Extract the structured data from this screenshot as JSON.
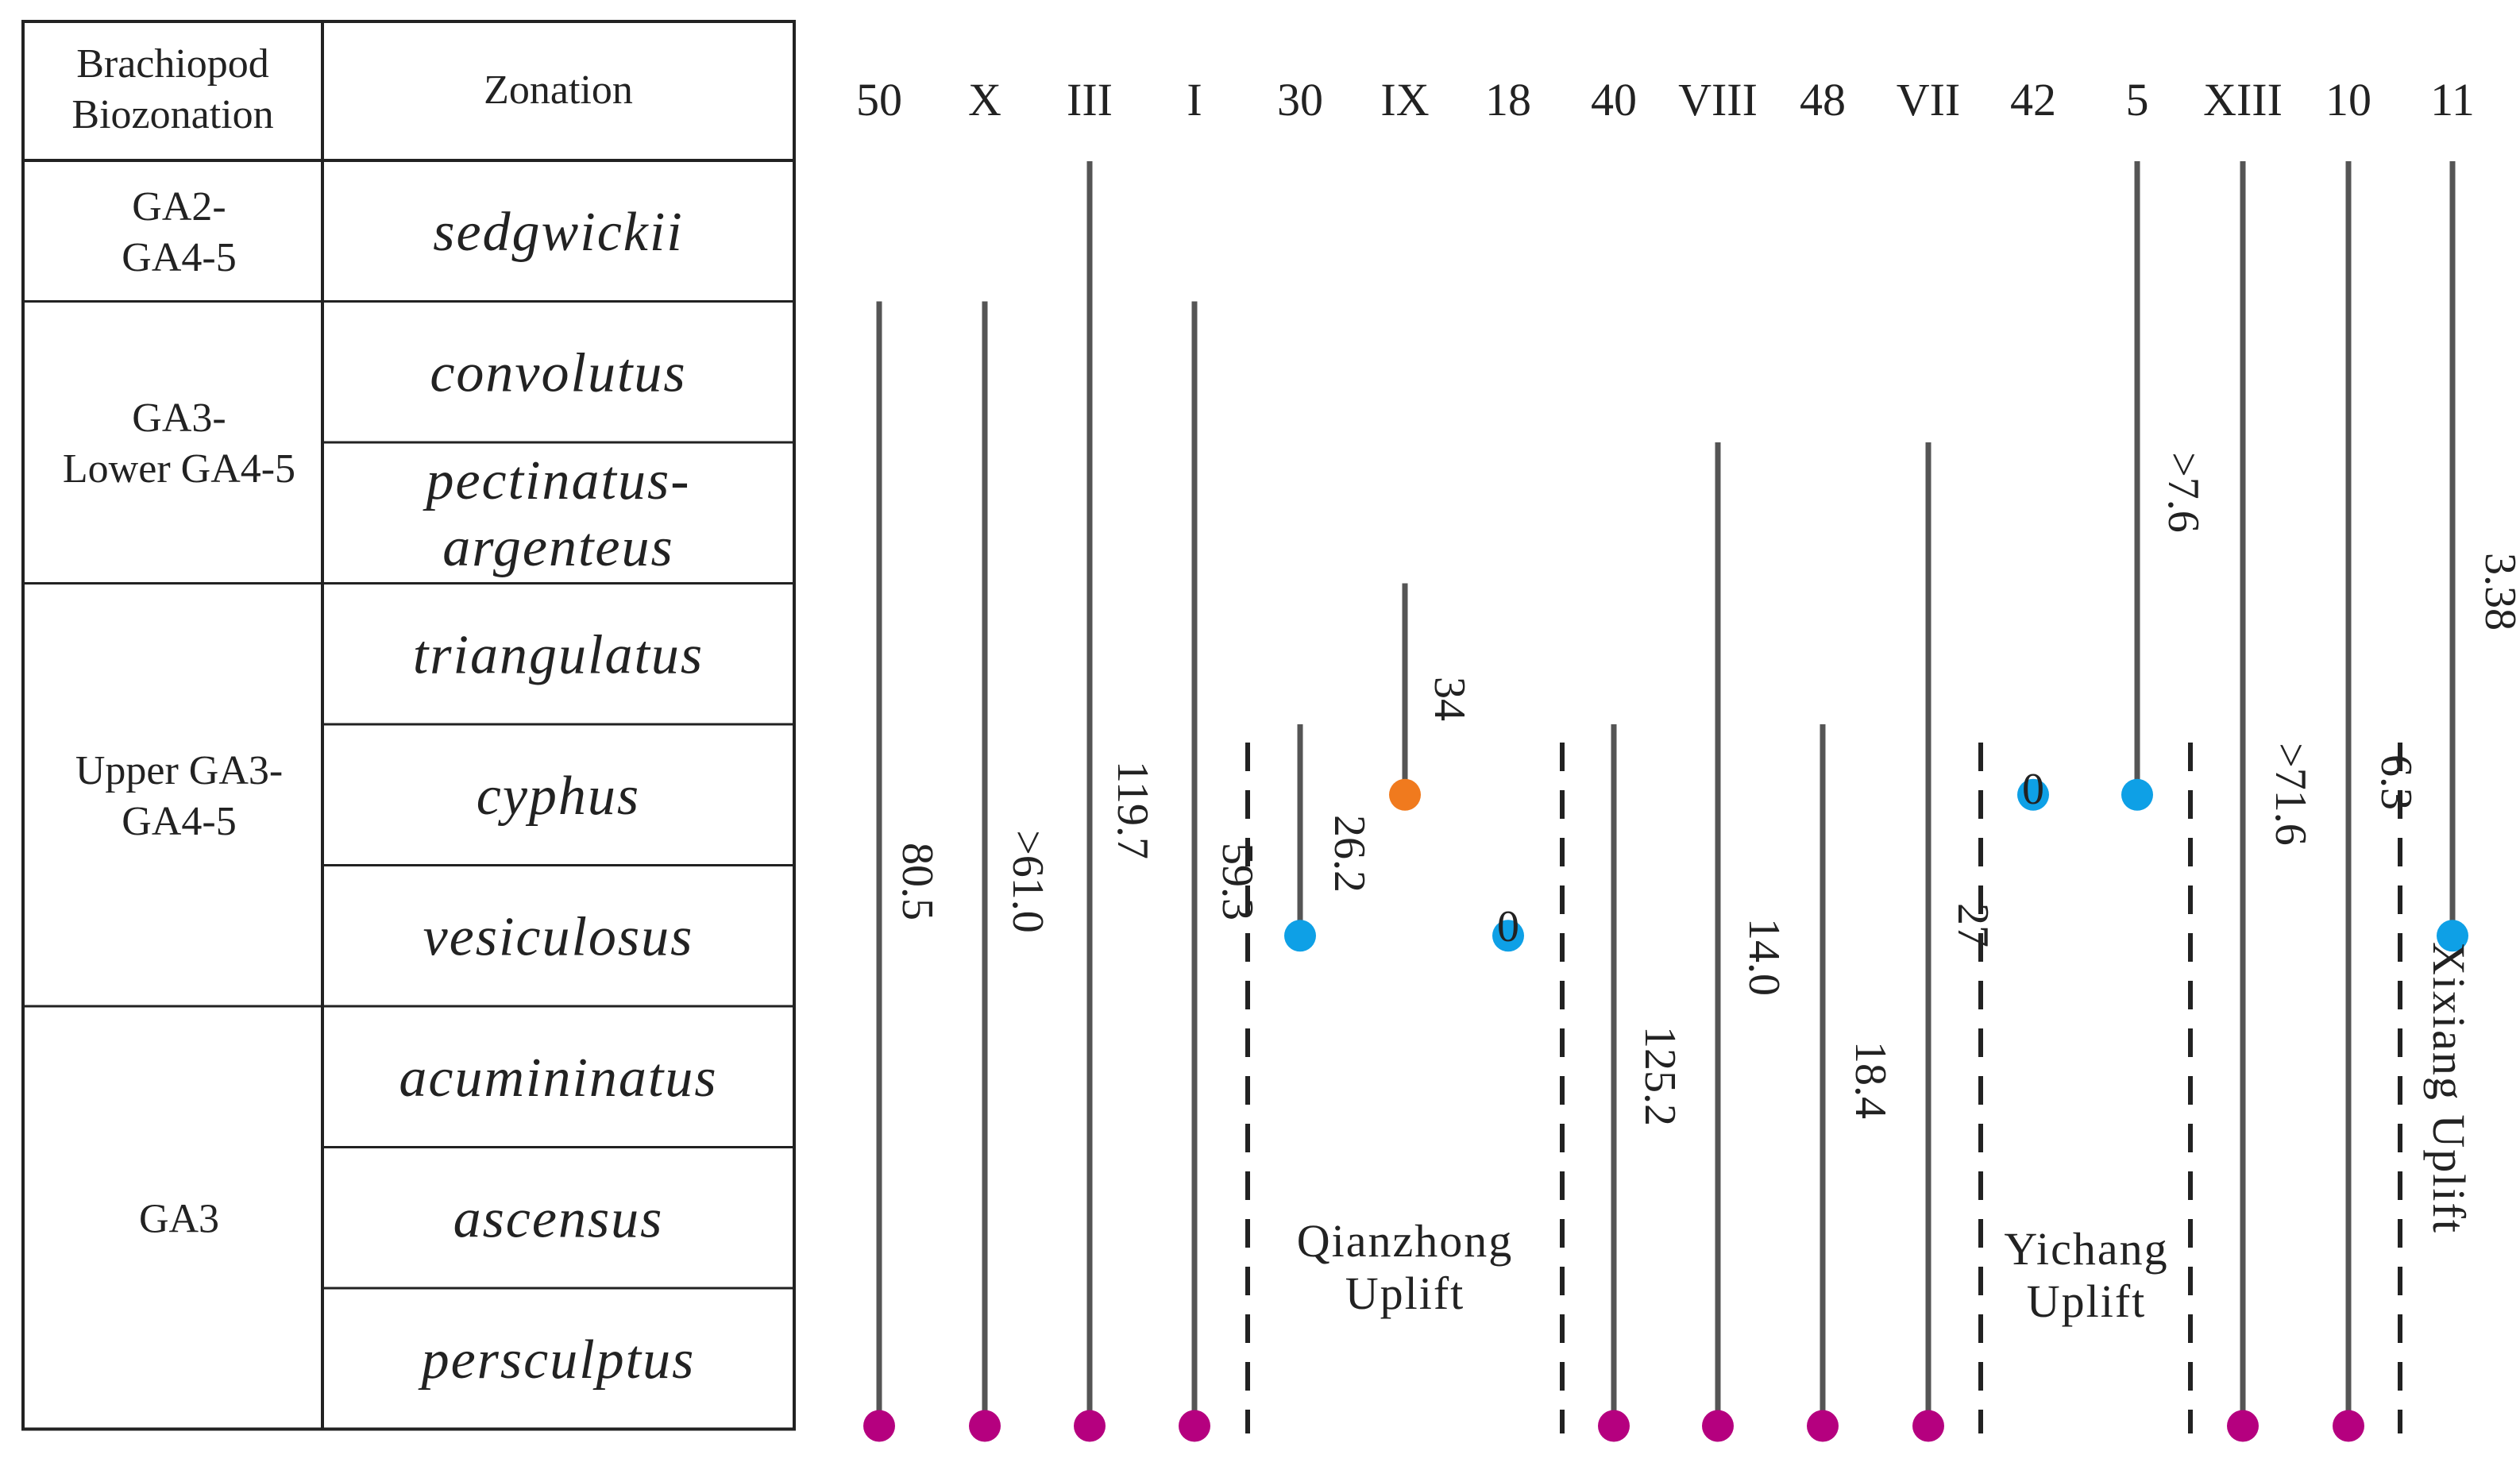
{
  "table": {
    "header": {
      "biozonation": "Brachiopod Biozonation",
      "zonation": "Zonation"
    },
    "groups": [
      {
        "label": "GA2-GA4-5",
        "lines": [
          "GA2-",
          "GA4-5"
        ]
      },
      {
        "label": "GA3-Lower GA4-5",
        "lines": [
          "GA3-",
          "Lower GA4-5"
        ]
      },
      {
        "label": "Upper GA3-GA4-5",
        "lines": [
          "Upper GA3-",
          "GA4-5"
        ]
      },
      {
        "label": "GA3",
        "lines": [
          "GA3"
        ]
      }
    ],
    "zones": [
      {
        "name": "sedgwickii",
        "lines": [
          "sedgwickii"
        ]
      },
      {
        "name": "convolutus",
        "lines": [
          "convolutus"
        ]
      },
      {
        "name": "pectinatus-argenteus",
        "lines": [
          "pectinatus-",
          "argenteus"
        ]
      },
      {
        "name": "triangulatus",
        "lines": [
          "triangulatus"
        ]
      },
      {
        "name": "cyphus",
        "lines": [
          "cyphus"
        ]
      },
      {
        "name": "vesiculosus",
        "lines": [
          "vesiculosus"
        ]
      },
      {
        "name": "acumininatus",
        "lines": [
          "acumininatus"
        ]
      },
      {
        "name": "ascensus",
        "lines": [
          "ascensus"
        ]
      },
      {
        "name": "persculptus",
        "lines": [
          "persculptus"
        ]
      }
    ]
  },
  "colors": {
    "line": "#555555",
    "border": "#222222",
    "magenta": "#b5007f",
    "blue": "#0ea0e6",
    "orange": "#f07a1e",
    "text": "#222222"
  },
  "sections": [
    {
      "id": "50",
      "top_zone": "convolutus",
      "bottom_zone": "persculptus",
      "thickness": "80.5",
      "base_dot": "magenta"
    },
    {
      "id": "X",
      "top_zone": "convolutus",
      "bottom_zone": "persculptus",
      "thickness": ">61.0",
      "base_dot": "magenta"
    },
    {
      "id": "III",
      "top_zone": "sedgwickii",
      "bottom_zone": "persculptus",
      "thickness": "119.7",
      "base_dot": "magenta"
    },
    {
      "id": "I",
      "top_zone": "convolutus",
      "bottom_zone": "persculptus",
      "thickness": "59.3",
      "base_dot": "magenta"
    },
    {
      "id": "30",
      "top_zone": "cyphus",
      "bottom_zone": "vesiculosus",
      "thickness": "26.2",
      "base_dot": "blue"
    },
    {
      "id": "IX",
      "top_zone": "triangulatus",
      "bottom_zone": "cyphus",
      "thickness": "34",
      "base_dot": "orange"
    },
    {
      "id": "18",
      "top_zone": null,
      "bottom_zone": "vesiculosus",
      "thickness": "0",
      "base_dot": "blue"
    },
    {
      "id": "40",
      "top_zone": "cyphus",
      "bottom_zone": "persculptus",
      "thickness": "125.2",
      "base_dot": "magenta"
    },
    {
      "id": "VIII",
      "top_zone": "pectinatus-argenteus",
      "bottom_zone": "persculptus",
      "thickness": "14.0",
      "base_dot": "magenta"
    },
    {
      "id": "48",
      "top_zone": "cyphus",
      "bottom_zone": "persculptus",
      "thickness": "18.4",
      "base_dot": "magenta"
    },
    {
      "id": "VII",
      "top_zone": "pectinatus-argenteus",
      "bottom_zone": "persculptus",
      "thickness": "27",
      "base_dot": "magenta"
    },
    {
      "id": "42",
      "top_zone": null,
      "bottom_zone": "cyphus",
      "thickness": "0",
      "base_dot": "blue"
    },
    {
      "id": "5",
      "top_zone": "sedgwickii",
      "bottom_zone": "cyphus",
      "thickness": ">7.6",
      "base_dot": "blue"
    },
    {
      "id": "XIII",
      "top_zone": "sedgwickii",
      "bottom_zone": "persculptus",
      "thickness": ">71.6",
      "base_dot": "magenta"
    },
    {
      "id": "10",
      "top_zone": "sedgwickii",
      "bottom_zone": "persculptus",
      "thickness": "6.3",
      "base_dot": "magenta"
    },
    {
      "id": "11",
      "top_zone": "sedgwickii",
      "bottom_zone": "vesiculosus",
      "thickness": "3.38",
      "base_dot": "blue"
    }
  ],
  "regions": [
    {
      "name": "Qianzhong Uplift",
      "lines": [
        "Qianzhong",
        "Uplift"
      ],
      "orientation": "horizontal"
    },
    {
      "name": "Yichang Uplift",
      "lines": [
        "Yichang",
        "Uplift"
      ],
      "orientation": "horizontal"
    },
    {
      "name": "Xixiang Uplift",
      "lines": [
        "Xixiang Uplift"
      ],
      "orientation": "vertical"
    }
  ]
}
